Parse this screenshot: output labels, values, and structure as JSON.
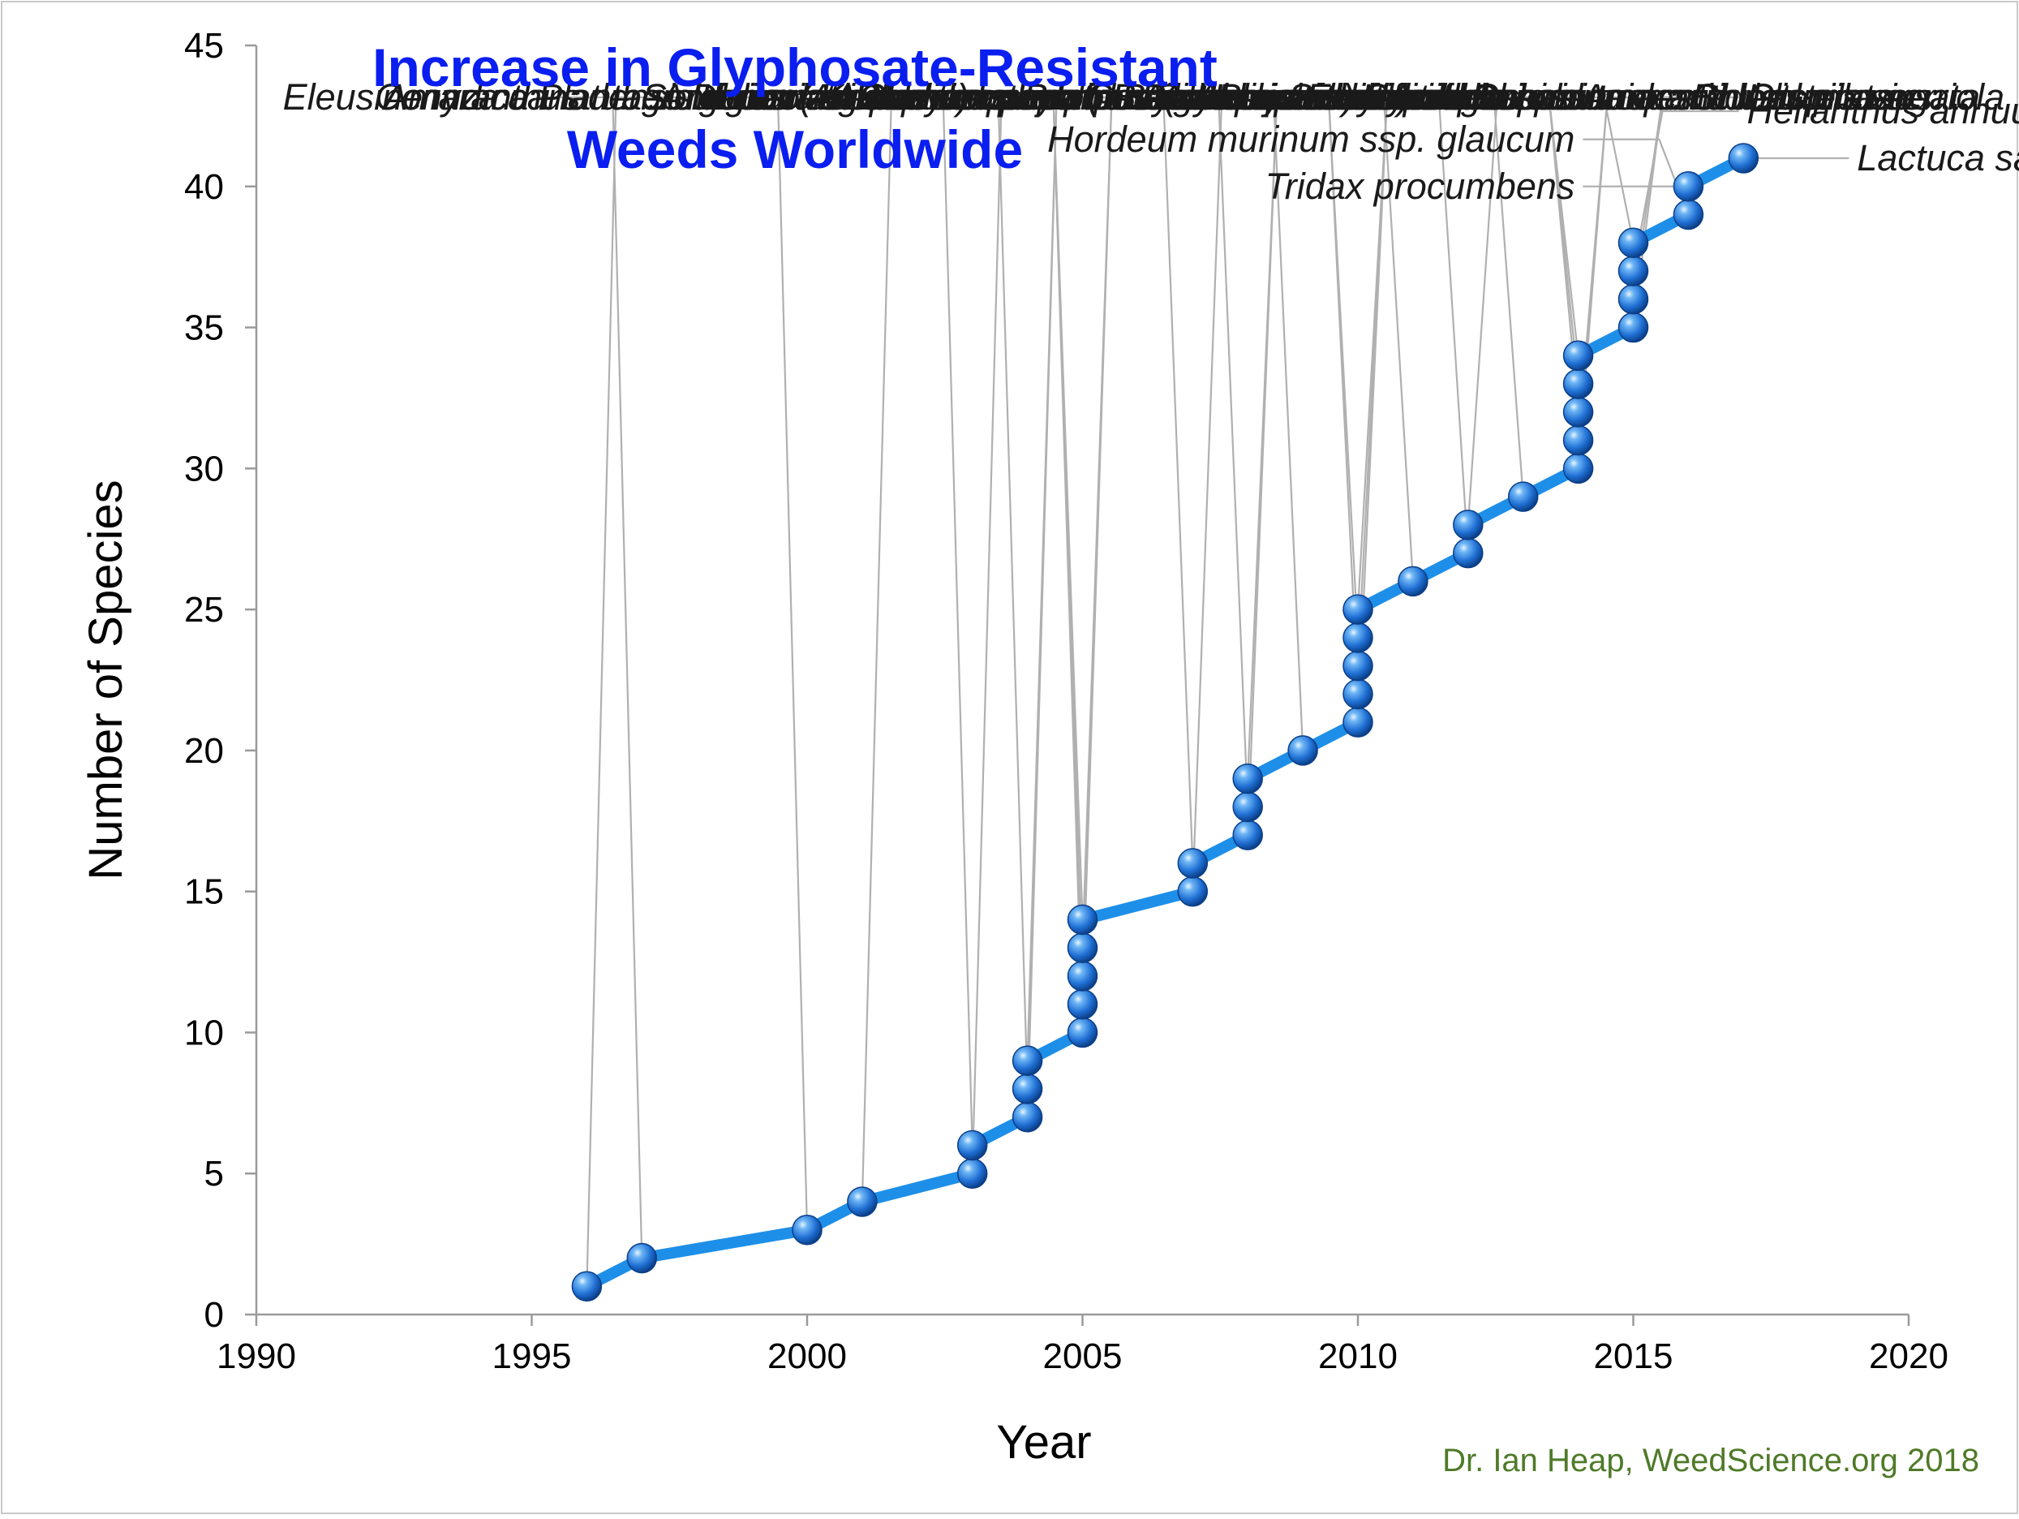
{
  "chart_data": {
    "type": "line",
    "title_lines": [
      "Increase in Glyphosate-Resistant",
      "Weeds Worldwide"
    ],
    "xlabel": "Year",
    "ylabel": "Number of Species",
    "xlim": [
      1990,
      2020
    ],
    "ylim": [
      0,
      45
    ],
    "x_ticks": [
      1990,
      1995,
      2000,
      2005,
      2010,
      2015,
      2020
    ],
    "y_ticks": [
      0,
      5,
      10,
      15,
      20,
      25,
      30,
      35,
      40,
      45
    ],
    "grid": false,
    "line_color": "#1e8fe8",
    "marker_color": "#1f6fd4",
    "leader_color": "#b0b0b0",
    "title_color": "#0a1ef0",
    "credit_color": "#4f7a28",
    "credit": "Dr. Ian Heap, WeedScience.org  2018",
    "points": [
      {
        "x": 1996,
        "y": 1,
        "label": "Lolium rigidum",
        "side": "right"
      },
      {
        "x": 1997,
        "y": 2,
        "label": "Eleusine indica",
        "side": "left"
      },
      {
        "x": 2000,
        "y": 3,
        "label": "Conyza canadensis",
        "side": "left"
      },
      {
        "x": 2001,
        "y": 4,
        "label": "Lolium perenne ssp. multiflorum",
        "side": "right"
      },
      {
        "x": 2003,
        "y": 5,
        "label": "Conyza bonariensis",
        "side": "right"
      },
      {
        "x": 2003,
        "y": 6,
        "label": "Plantago lanceolata",
        "side": "left"
      },
      {
        "x": 2004,
        "y": 7,
        "label": "Ambrosia artemisiifolia",
        "side": "right"
      },
      {
        "x": 2004,
        "y": 8,
        "label": "Ambrosia trifida",
        "side": "left"
      },
      {
        "x": 2004,
        "y": 9,
        "label": "Parthenium hysterophorus",
        "side": "right"
      },
      {
        "x": 2005,
        "y": 10,
        "label": "Sorghum halepense",
        "side": "left"
      },
      {
        "x": 2005,
        "y": 11,
        "label": "Amaranthus palmeri",
        "side": "right"
      },
      {
        "x": 2005,
        "y": 12,
        "label": "Amaranthus tuberculatus (=A. rudis)",
        "side": "left"
      },
      {
        "x": 2005,
        "y": 13,
        "label": "Hedyotis verticillata",
        "side": "right"
      },
      {
        "x": 2005,
        "y": 14,
        "label": "Digitaria insularis",
        "side": "left"
      },
      {
        "x": 2007,
        "y": 15,
        "label": "Echinochloa colona",
        "side": "right"
      },
      {
        "x": 2007,
        "y": 16,
        "label": "Kochia scoparia",
        "side": "left"
      },
      {
        "x": 2008,
        "y": 17,
        "label": "Cynodon hirsutus",
        "side": "right"
      },
      {
        "x": 2008,
        "y": 18,
        "label": "Lolium perenne",
        "side": "left"
      },
      {
        "x": 2008,
        "y": 19,
        "label": "Urochloa panicoides",
        "side": "right"
      },
      {
        "x": 2009,
        "y": 20,
        "label": "Conyza sumatrensis",
        "side": "left"
      },
      {
        "x": 2010,
        "y": 21,
        "label": "Chloris truncata",
        "side": "right"
      },
      {
        "x": 2010,
        "y": 22,
        "label": "Leptochloa virgata",
        "side": "left"
      },
      {
        "x": 2010,
        "y": 23,
        "label": "Poa annua",
        "side": "right"
      },
      {
        "x": 2010,
        "y": 24,
        "label": "Raphanus raphanistrum",
        "side": "left"
      },
      {
        "x": 2010,
        "y": 25,
        "label": "Paspalum paniculatum",
        "side": "right"
      },
      {
        "x": 2011,
        "y": 26,
        "label": "Bromus diandrus",
        "side": "left"
      },
      {
        "x": 2012,
        "y": 27,
        "label": "Brassica rapa (=B. campestris)",
        "side": "left"
      },
      {
        "x": 2012,
        "y": 28,
        "label": "Amaranthus spinosus",
        "side": "right"
      },
      {
        "x": 2013,
        "y": 29,
        "label": "Amaranthus hybridus (syn: quitensis)",
        "side": "left"
      },
      {
        "x": 2014,
        "y": 30,
        "label": "Bidens pilosa",
        "side": "right"
      },
      {
        "x": 2014,
        "y": 31,
        "label": "Chloris elata",
        "side": "right"
      },
      {
        "x": 2014,
        "y": 32,
        "label": "Brachiaria eruciformis",
        "side": "left"
      },
      {
        "x": 2014,
        "y": 33,
        "label": "Bromus rubens",
        "side": "left"
      },
      {
        "x": 2014,
        "y": 34,
        "label": "Sonchus oleraceus",
        "side": "left"
      },
      {
        "x": 2015,
        "y": 35,
        "label": "Chloris virgata",
        "side": "right"
      },
      {
        "x": 2015,
        "y": 36,
        "label": "Lactuca serriola",
        "side": "right"
      },
      {
        "x": 2015,
        "y": 37,
        "label": "Helianthus annuus",
        "side": "right"
      },
      {
        "x": 2015,
        "y": 38,
        "label": "Salsola tragus",
        "side": "left"
      },
      {
        "x": 2016,
        "y": 39,
        "label": "Hordeum murinum ssp. glaucum",
        "side": "left"
      },
      {
        "x": 2016,
        "y": 40,
        "label": "Tridax procumbens",
        "side": "left"
      },
      {
        "x": 2017,
        "y": 41,
        "label": "Lactuca saligna",
        "side": "right"
      }
    ]
  }
}
